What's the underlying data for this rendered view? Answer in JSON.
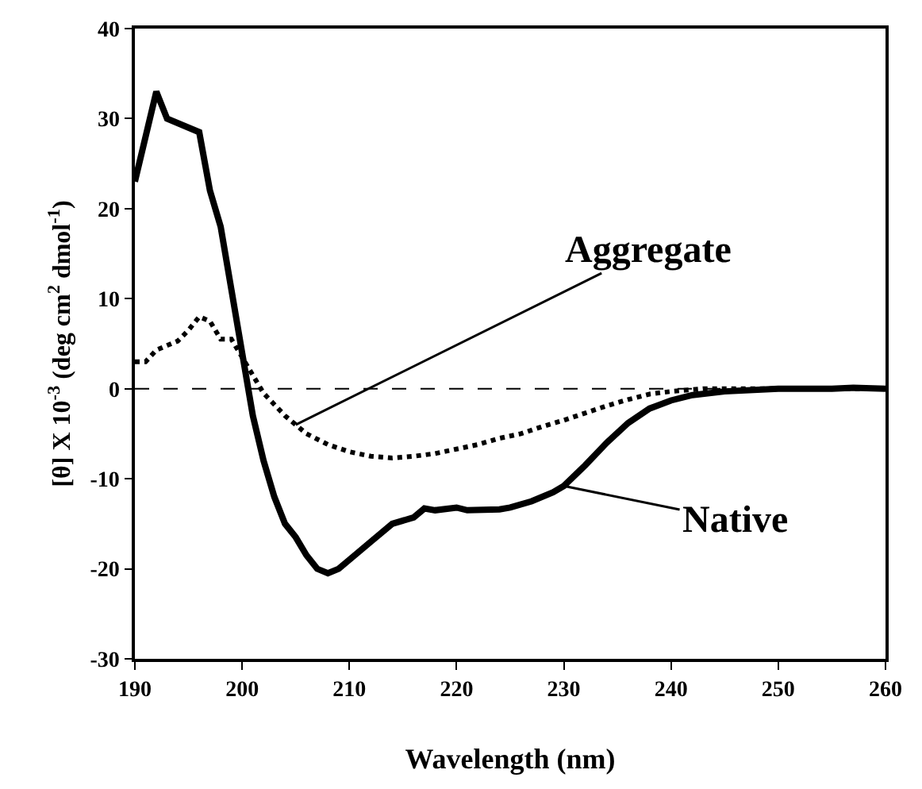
{
  "chart_data": {
    "type": "line",
    "xlabel": "Wavelength (nm)",
    "ylabel": "[θ] X 10$^{-3}$ (deg cm$^{2}$ dmol$^{-1}$)",
    "xlim": [
      190,
      260
    ],
    "xticks": [
      190,
      200,
      210,
      220,
      230,
      240,
      250,
      260
    ],
    "ylim": [
      -30,
      40
    ],
    "yticks": [
      -30,
      -20,
      -10,
      0,
      10,
      20,
      30,
      40
    ],
    "grid": false,
    "marker": "none",
    "ref_lines": [
      {
        "axis": "y",
        "value": 0,
        "color": "#000000",
        "line_style": "dashed"
      }
    ],
    "annotations": [
      {
        "text": "Aggregate",
        "x": 205,
        "y": -4
      },
      {
        "text": "Native",
        "x": 230,
        "y": -10.8
      }
    ],
    "series": [
      {
        "color": "#000000",
        "line_style": "solid",
        "x": [
          190,
          192,
          193,
          196,
          197,
          198,
          199,
          200,
          201,
          202,
          203,
          204,
          205,
          206,
          207,
          208,
          209,
          210,
          212,
          214,
          216,
          217,
          218,
          220,
          221,
          224,
          225,
          227,
          229,
          230,
          232,
          234,
          236,
          238,
          240,
          242,
          245,
          250,
          255,
          257,
          260
        ],
        "values": [
          23,
          33,
          30,
          28.5,
          22,
          18,
          11,
          4,
          -3,
          -8,
          -12,
          -15,
          -16.5,
          -18.5,
          -20,
          -20.5,
          -20,
          -19,
          -17,
          -15,
          -14.3,
          -13.3,
          -13.5,
          -13.2,
          -13.5,
          -13.4,
          -13.2,
          -12.5,
          -11.5,
          -10.8,
          -8.5,
          -6,
          -3.8,
          -2.2,
          -1.3,
          -0.7,
          -0.3,
          0,
          0,
          0.1,
          0
        ]
      },
      {
        "color": "#000000",
        "line_style": "dotted",
        "x": [
          190,
          191,
          192,
          194,
          195,
          196,
          197,
          198,
          199,
          200,
          201,
          202,
          204,
          206,
          208,
          210,
          212,
          214,
          216,
          218,
          220,
          222,
          224,
          226,
          228,
          230,
          232,
          234,
          236,
          238,
          240,
          243,
          250,
          260
        ],
        "values": [
          3,
          3,
          4.3,
          5.3,
          6.5,
          8,
          7.5,
          5.5,
          5.5,
          3.5,
          1.5,
          -0.5,
          -3,
          -5,
          -6.2,
          -7,
          -7.5,
          -7.7,
          -7.5,
          -7.2,
          -6.7,
          -6.2,
          -5.5,
          -5,
          -4.2,
          -3.5,
          -2.7,
          -1.9,
          -1.2,
          -0.6,
          -0.3,
          0,
          0,
          0
        ]
      }
    ]
  }
}
